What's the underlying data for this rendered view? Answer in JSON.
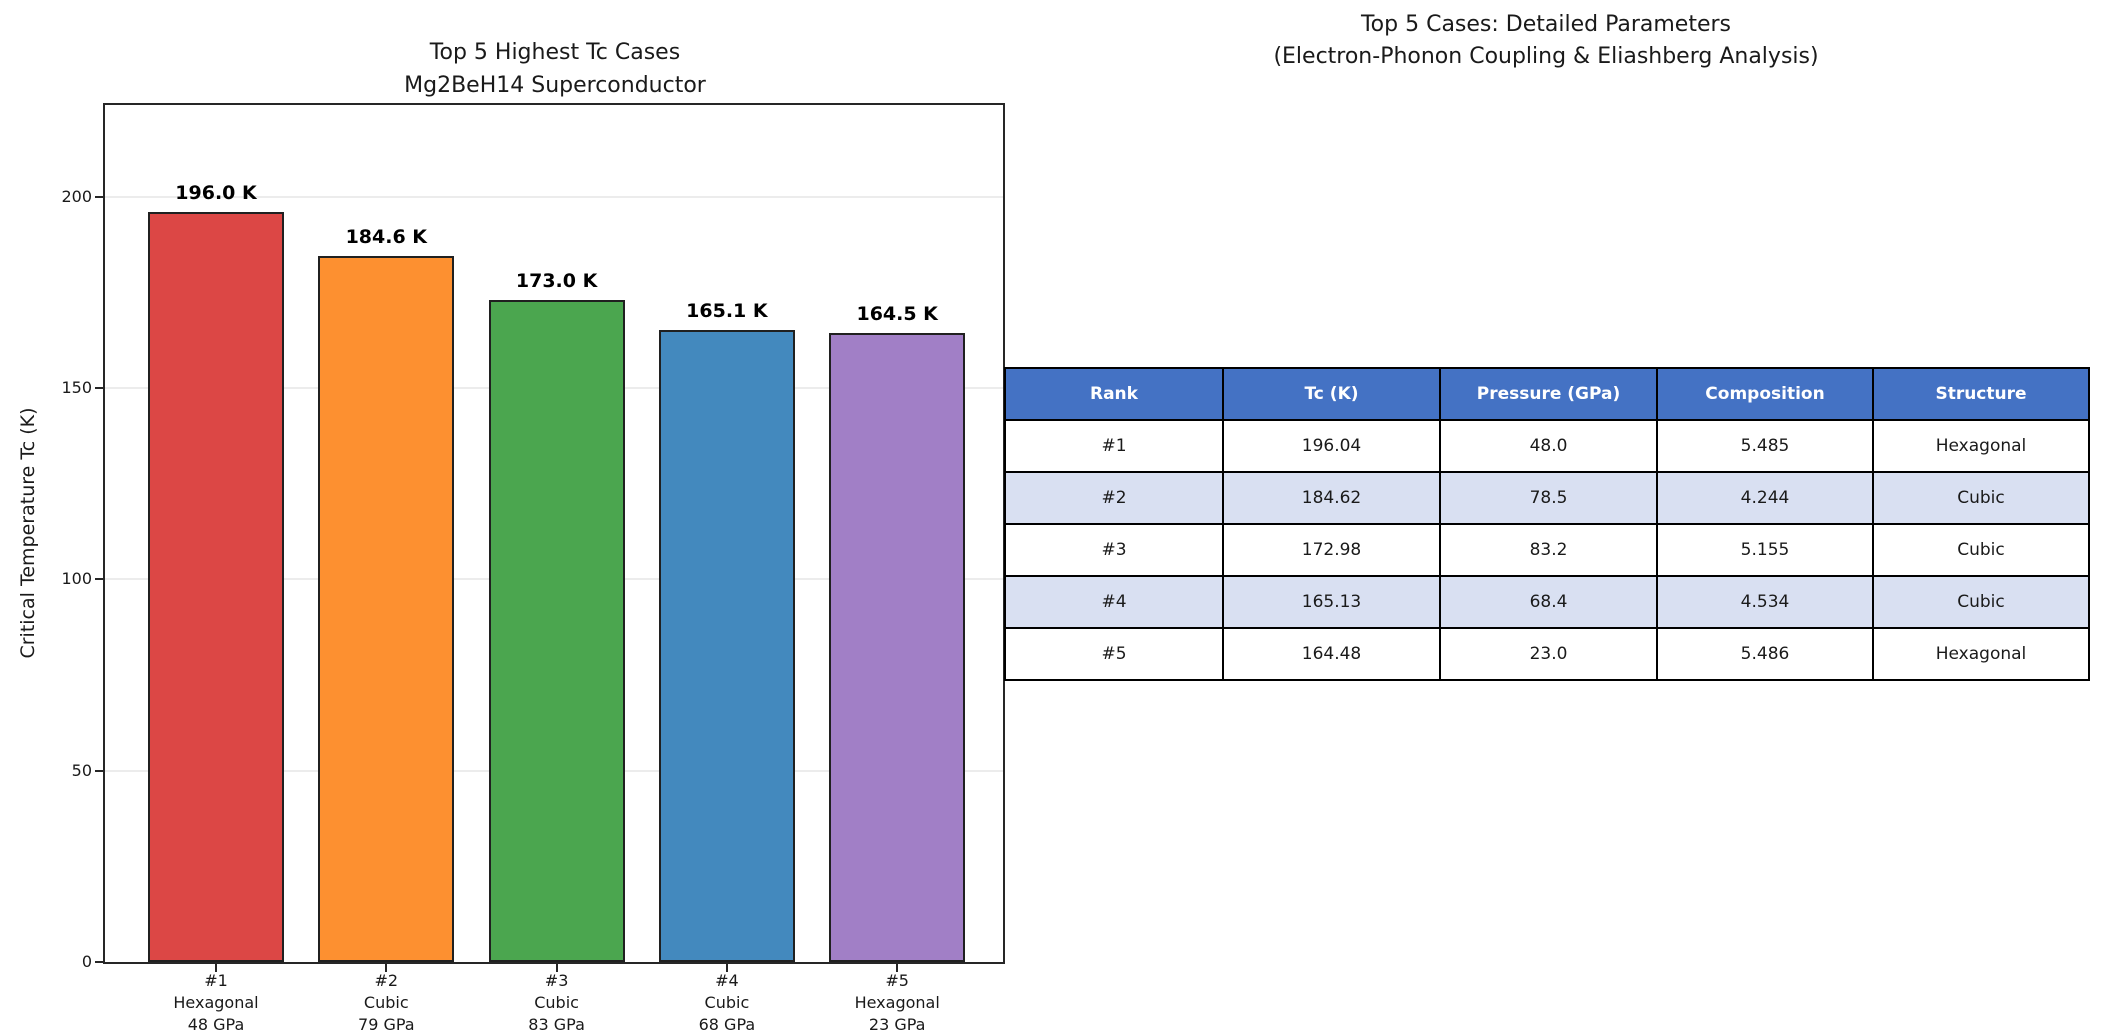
{
  "figure": {
    "background": "#ffffff"
  },
  "chart_data": [
    {
      "type": "bar",
      "title": "Top 5 Highest Tc Cases\nMg2BeH14 Superconductor",
      "title_line1": "Top 5 Highest Tc Cases",
      "title_line2": "Mg2BeH14 Superconductor",
      "ylabel": "Critical Temperature Tc (K)",
      "ylim": [
        0,
        224
      ],
      "yticks": [
        0,
        50,
        100,
        150,
        200
      ],
      "grid": "horizontal-light",
      "legend": "none",
      "categories": [
        "#1",
        "#2",
        "#3",
        "#4",
        "#5"
      ],
      "x_tick_lines": [
        [
          "#1",
          "Hexagonal",
          "48 GPa"
        ],
        [
          "#2",
          "Cubic",
          "79 GPa"
        ],
        [
          "#3",
          "Cubic",
          "83 GPa"
        ],
        [
          "#4",
          "Cubic",
          "68 GPa"
        ],
        [
          "#5",
          "Hexagonal",
          "23 GPa"
        ]
      ],
      "values": [
        196.04,
        184.62,
        172.98,
        165.13,
        164.48
      ],
      "bar_labels": [
        "196.0 K",
        "184.6 K",
        "173.0 K",
        "165.1 K",
        "164.5 K"
      ],
      "bar_colors": [
        "#DC4745",
        "#FD9030",
        "#4BA64F",
        "#4389BE",
        "#A17FC6"
      ],
      "bar_edge_color": "#202020"
    },
    {
      "type": "table",
      "title": "Top 5 Cases: Detailed Parameters\n(Electron-Phonon Coupling & Eliashberg Analysis)",
      "title_line1": "Top 5 Cases: Detailed Parameters",
      "title_line2": "(Electron-Phonon Coupling & Eliashberg Analysis)",
      "columns": [
        "Rank",
        "Tc (K)",
        "Pressure (GPa)",
        "Composition",
        "Structure"
      ],
      "rows": [
        [
          "#1",
          "196.04",
          "48.0",
          "5.485",
          "Hexagonal"
        ],
        [
          "#2",
          "184.62",
          "78.5",
          "4.244",
          "Cubic"
        ],
        [
          "#3",
          "172.98",
          "83.2",
          "5.155",
          "Cubic"
        ],
        [
          "#4",
          "165.13",
          "68.4",
          "4.534",
          "Cubic"
        ],
        [
          "#5",
          "164.48",
          "23.0",
          "5.486",
          "Hexagonal"
        ]
      ],
      "header_bg": "#4472C4",
      "header_text_color": "#ffffff",
      "row_bg": "#ffffff",
      "row_alt_bg": "#D9E0F2",
      "border_color": "#000000"
    }
  ]
}
